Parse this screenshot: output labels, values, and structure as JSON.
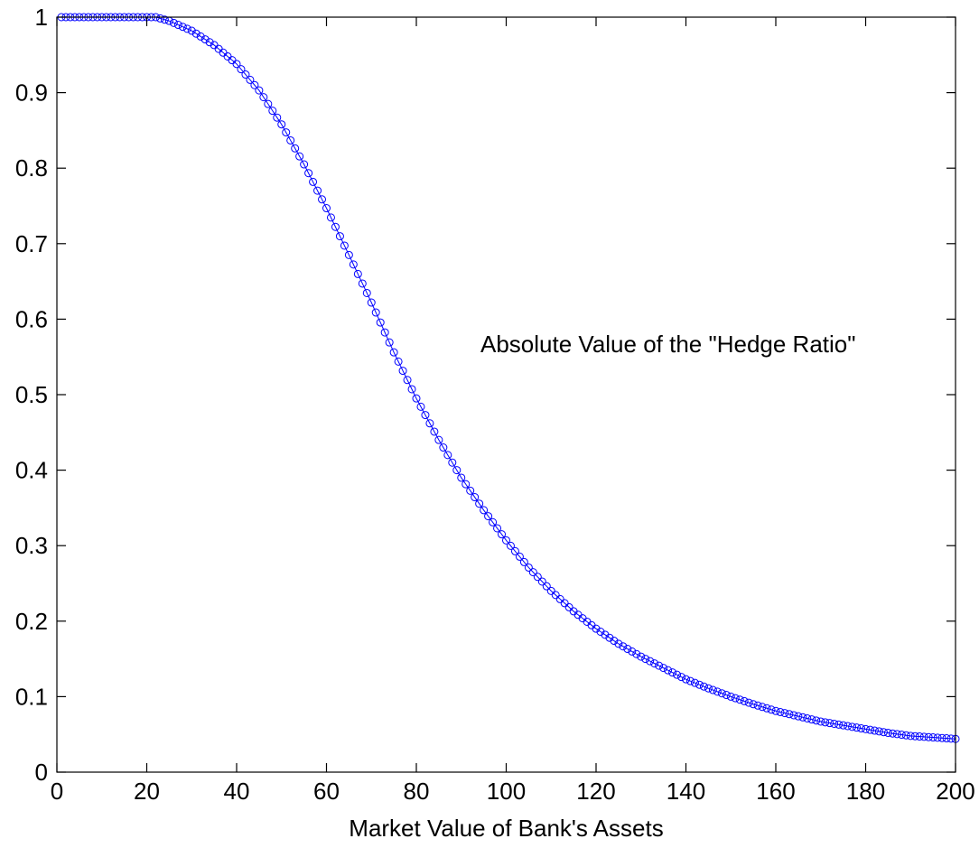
{
  "chart_data": {
    "type": "scatter",
    "title": "",
    "xlabel": "Market Value of Bank's Assets",
    "ylabel": "",
    "xlim": [
      0,
      200
    ],
    "ylim": [
      0,
      1
    ],
    "xticks": [
      "0",
      "20",
      "40",
      "60",
      "80",
      "100",
      "120",
      "140",
      "160",
      "180",
      "200"
    ],
    "yticks": [
      "0",
      "0.1",
      "0.2",
      "0.3",
      "0.4",
      "0.5",
      "0.6",
      "0.7",
      "0.8",
      "0.9",
      "1"
    ],
    "grid": false,
    "legend": "none",
    "annotation": "Absolute Value of the \"Hedge Ratio\"",
    "marker": "circle-open",
    "colors": {
      "series": "#0000ff",
      "axes": "#000000"
    },
    "series": [
      {
        "x": [
          0,
          5,
          10,
          15,
          20,
          22,
          25,
          30,
          35,
          40,
          45,
          50,
          55,
          60,
          65,
          70,
          75,
          80,
          85,
          90,
          95,
          100,
          105,
          110,
          115,
          120,
          125,
          130,
          135,
          140,
          145,
          150,
          155,
          160,
          165,
          170,
          175,
          180,
          185,
          190,
          195,
          200
        ],
        "values": [
          1.0,
          1.0,
          1.0,
          1.0,
          1.0,
          1.0,
          0.995,
          0.982,
          0.963,
          0.938,
          0.903,
          0.858,
          0.805,
          0.747,
          0.685,
          0.622,
          0.556,
          0.495,
          0.44,
          0.39,
          0.347,
          0.307,
          0.271,
          0.24,
          0.213,
          0.19,
          0.17,
          0.153,
          0.138,
          0.123,
          0.111,
          0.1,
          0.09,
          0.081,
          0.074,
          0.067,
          0.062,
          0.057,
          0.052,
          0.048,
          0.046,
          0.044
        ]
      }
    ]
  }
}
